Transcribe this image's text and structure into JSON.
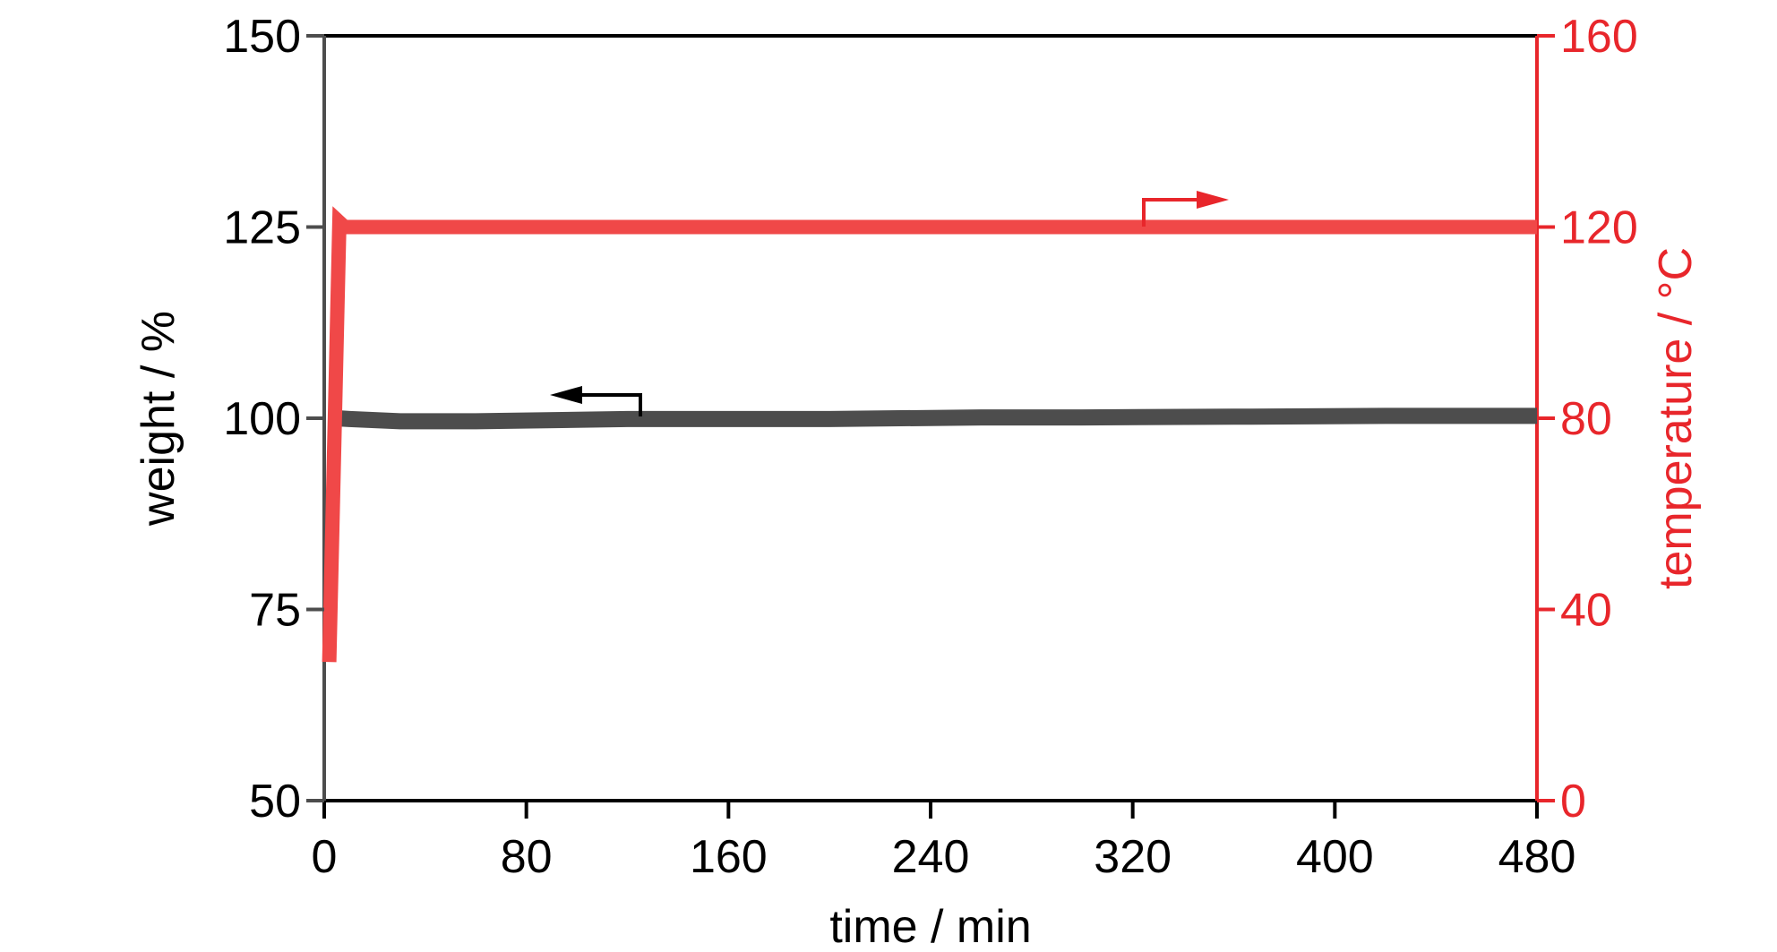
{
  "chart_data": {
    "type": "line",
    "xlabel": "time / min",
    "ylabel_left": "weight / %",
    "ylabel_right": "temperature / °C",
    "xlim": [
      0,
      480
    ],
    "ylim_left": [
      50,
      150
    ],
    "ylim_right": [
      0,
      160
    ],
    "x_ticks": [
      "0",
      "80",
      "160",
      "240",
      "320",
      "400",
      "480"
    ],
    "y_left_ticks": [
      "50",
      "75",
      "100",
      "125",
      "150"
    ],
    "y_right_ticks": [
      "0",
      "40",
      "80",
      "120",
      "160"
    ],
    "grid": false,
    "colors": {
      "weight": "#4d4d4d",
      "temperature": "#f04848",
      "right_axis": "#e8262b",
      "left_axis": "#000000"
    },
    "series": [
      {
        "axis": "left",
        "color": "#4d4d4d",
        "x": [
          5,
          10,
          30,
          60,
          120,
          200,
          260,
          300,
          360,
          420,
          480
        ],
        "y": [
          100,
          99.9,
          99.6,
          99.6,
          99.9,
          99.9,
          100.1,
          100.1,
          100.2,
          100.3,
          100.3
        ]
      },
      {
        "axis": "right",
        "color": "#f04848",
        "x": [
          2,
          6,
          8,
          20,
          480
        ],
        "y": [
          29,
          121,
          120,
          120,
          120
        ]
      }
    ],
    "annotations": [
      {
        "type": "arrow",
        "points_to": "left",
        "series": "weight"
      },
      {
        "type": "arrow",
        "points_to": "right",
        "series": "temperature"
      }
    ]
  }
}
